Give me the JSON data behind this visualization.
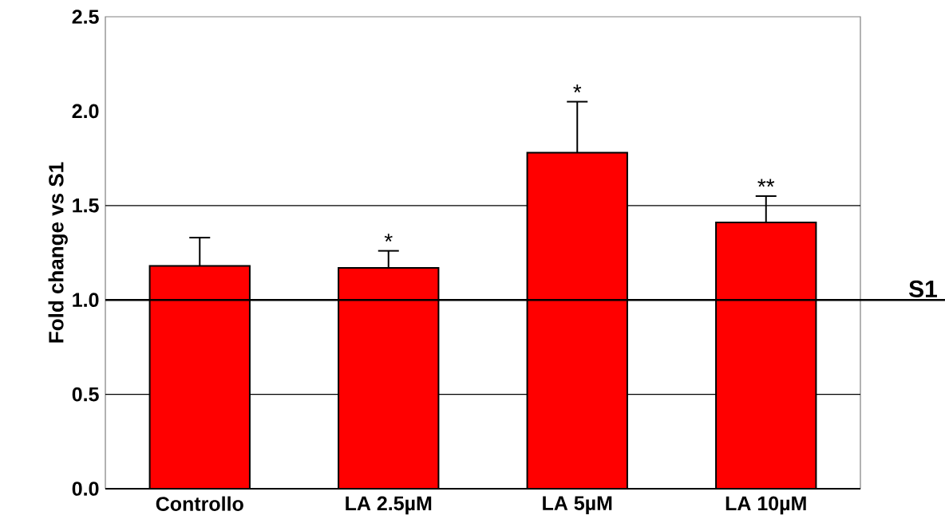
{
  "chart_data": {
    "type": "bar",
    "ylabel": "Fold change vs S1",
    "categories": [
      "Controllo",
      "LA 2.5µM",
      "LA 5µM",
      "LA 10µM"
    ],
    "values": [
      1.18,
      1.17,
      1.78,
      1.41
    ],
    "errors": [
      [
        1.18,
        1.33
      ],
      [
        1.17,
        1.26
      ],
      [
        1.78,
        2.05
      ],
      [
        1.41,
        1.55
      ]
    ],
    "color": "#ff0000",
    "ylim": [
      0,
      2.5
    ],
    "yticks": [
      {
        "value": 0,
        "label": "0.0"
      },
      {
        "value": 0.5,
        "label": "0.5"
      },
      {
        "value": 1,
        "label": "1.0"
      },
      {
        "value": 1.5,
        "label": "1.5"
      },
      {
        "value": 2,
        "label": "2.0"
      },
      {
        "value": 2.5,
        "label": "2.5"
      }
    ],
    "ref_lines": [
      {
        "axis": "y",
        "value": 0.5,
        "label": null
      },
      {
        "axis": "y",
        "value": 1.5,
        "label": null
      },
      {
        "axis": "y",
        "value": 1.0,
        "label": "S1"
      }
    ],
    "annotations": [
      {
        "text": "*",
        "x": "LA 2.5µM",
        "y": 1.26
      },
      {
        "text": "*",
        "x": "LA 5µM",
        "y": 2.05
      },
      {
        "text": "**",
        "x": "LA 10µM",
        "y": 1.55
      }
    ]
  }
}
